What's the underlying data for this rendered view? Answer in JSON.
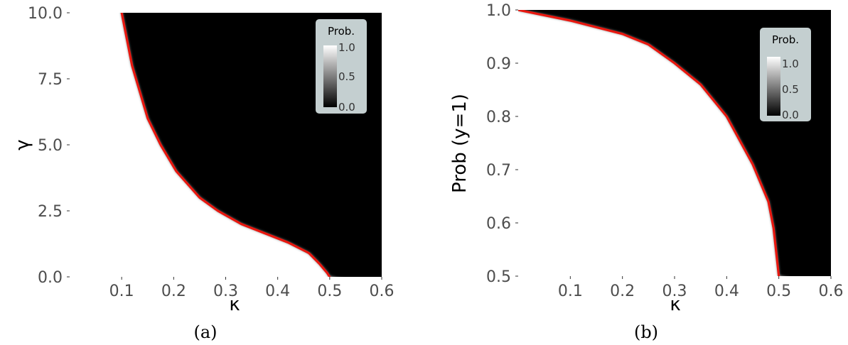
{
  "chart_data": [
    {
      "type": "heatmap",
      "caption": "(a)",
      "xlabel": "κ",
      "ylabel": "γ",
      "xlim": [
        0.0,
        0.6
      ],
      "ylim": [
        0.0,
        10.0
      ],
      "xticks": [
        "0.1",
        "0.2",
        "0.3",
        "0.4",
        "0.5",
        "0.6"
      ],
      "yticks": [
        "0.0",
        "2.5",
        "5.0",
        "7.5",
        "10.0"
      ],
      "heatmap_colors": {
        "inside_region": "#000000",
        "outside_region": "#ffffff"
      },
      "boundary_color": "#e8170f",
      "boundary": [
        {
          "x": 0.1,
          "y": 10.0
        },
        {
          "x": 0.11,
          "y": 9.0
        },
        {
          "x": 0.12,
          "y": 8.0
        },
        {
          "x": 0.135,
          "y": 7.0
        },
        {
          "x": 0.15,
          "y": 6.0
        },
        {
          "x": 0.175,
          "y": 5.0
        },
        {
          "x": 0.205,
          "y": 4.0
        },
        {
          "x": 0.25,
          "y": 3.0
        },
        {
          "x": 0.285,
          "y": 2.5
        },
        {
          "x": 0.33,
          "y": 2.0
        },
        {
          "x": 0.42,
          "y": 1.3
        },
        {
          "x": 0.46,
          "y": 0.9
        },
        {
          "x": 0.48,
          "y": 0.5
        },
        {
          "x": 0.495,
          "y": 0.15
        },
        {
          "x": 0.5,
          "y": 0.0
        }
      ],
      "legend": {
        "title": "Prob.",
        "labels": [
          "1.0",
          "0.5",
          "0.0"
        ],
        "position": "top-right",
        "background": "#c4cfd0"
      }
    },
    {
      "type": "heatmap",
      "caption": "(b)",
      "xlabel": "κ",
      "ylabel": "Prob (y=1)",
      "xlim": [
        0.0,
        0.6
      ],
      "ylim": [
        0.5,
        1.0
      ],
      "xticks": [
        "0.1",
        "0.2",
        "0.3",
        "0.4",
        "0.5",
        "0.6"
      ],
      "yticks": [
        "0.5",
        "0.6",
        "0.7",
        "0.8",
        "0.9",
        "1.0"
      ],
      "heatmap_colors": {
        "inside_region": "#000000",
        "outside_region": "#ffffff"
      },
      "boundary_color": "#e8170f",
      "boundary": [
        {
          "x": 0.0,
          "y": 1.0
        },
        {
          "x": 0.1,
          "y": 0.98
        },
        {
          "x": 0.2,
          "y": 0.955
        },
        {
          "x": 0.25,
          "y": 0.935
        },
        {
          "x": 0.3,
          "y": 0.9
        },
        {
          "x": 0.35,
          "y": 0.86
        },
        {
          "x": 0.4,
          "y": 0.8
        },
        {
          "x": 0.45,
          "y": 0.71
        },
        {
          "x": 0.48,
          "y": 0.64
        },
        {
          "x": 0.49,
          "y": 0.59
        },
        {
          "x": 0.5,
          "y": 0.5
        }
      ],
      "legend": {
        "title": "Prob.",
        "labels": [
          "1.0",
          "0.5",
          "0.0"
        ],
        "position": "top-right",
        "background": "#c4cfd0"
      }
    }
  ]
}
